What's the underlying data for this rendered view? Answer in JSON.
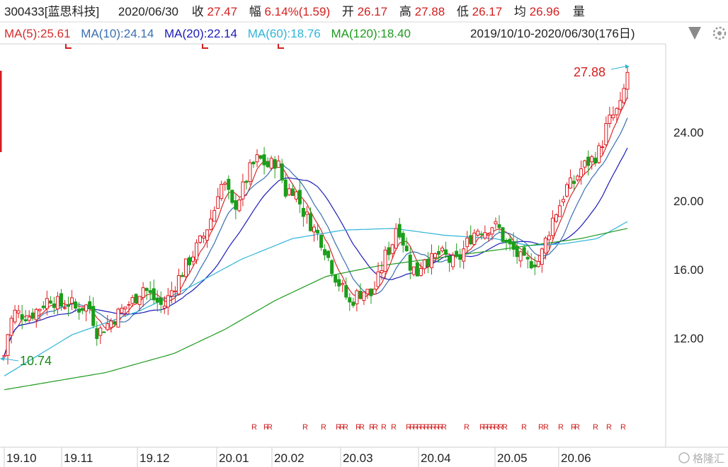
{
  "header": {
    "stock": "300433[蓝思科技]",
    "date": "2020/06/30",
    "close_label": "收",
    "close": "27.47",
    "change_label": "幅",
    "change": "6.14%(1.59)",
    "open_label": "开",
    "open": "26.17",
    "high_label": "高",
    "high": "27.88",
    "low_label": "低",
    "low": "26.17",
    "avg_label": "均",
    "avg": "26.96",
    "vol_label": "量"
  },
  "ma_legend": [
    {
      "label": "MA(5):25.61",
      "color": "#d42c2c"
    },
    {
      "label": "MA(10):24.14",
      "color": "#3a6fb0"
    },
    {
      "label": "MA(20):22.14",
      "color": "#1c1cb8"
    },
    {
      "label": "MA(60):18.76",
      "color": "#2fb4d8"
    },
    {
      "label": "MA(120):18.40",
      "color": "#1f9a1f"
    }
  ],
  "range_label": "2019/10/10-2020/06/30(176日)",
  "watermark": "格隆汇",
  "chart_data": {
    "type": "candlestick",
    "y_ticks": [
      "24.00",
      "20.00",
      "16.00",
      "12.00"
    ],
    "ylim": [
      8.5,
      29.0
    ],
    "x_ticks": [
      "19.10",
      "19.11",
      "19.12",
      "20.01",
      "20.02",
      "20.03",
      "20.04",
      "20.05",
      "20.06"
    ],
    "annotations": {
      "high": "27.88",
      "low": "10.74"
    },
    "r_marker": "R",
    "colors": {
      "up": "#e0181e",
      "down": "#1a9e1a",
      "ma5": "#d42c2c",
      "ma10": "#3a6fb0",
      "ma20": "#1c1cb8",
      "ma60": "#2fb4d8",
      "ma120": "#1f9a1f"
    }
  }
}
